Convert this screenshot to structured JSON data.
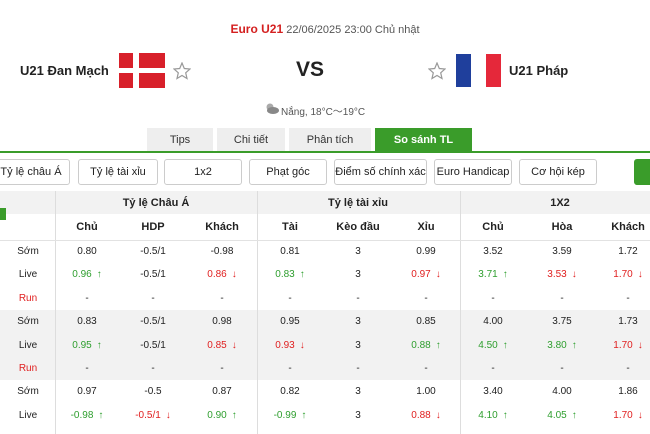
{
  "header": {
    "competition": "Euro U21",
    "datetime": "22/06/2025 23:00 Chủ nhật",
    "home": "U21 Đan Mạch",
    "vs": "VS",
    "away": "U21 Pháp",
    "weather": "Nắng, 18°C～19°C"
  },
  "tabs": [
    {
      "label": "Tips"
    },
    {
      "label": "Chi tiết"
    },
    {
      "label": "Phân tích"
    },
    {
      "label": "So sánh TL",
      "active": true
    }
  ],
  "filters": [
    "Tỷ lệ châu Á",
    "Tỷ lệ tài xỉu",
    "1x2",
    "Phạt góc",
    "Điểm số chính xác",
    "Euro Handicap",
    "Cơ hội kép"
  ],
  "table": {
    "groups": [
      "Tỷ lệ Châu Á",
      "Tỷ lệ tài xỉu",
      "1X2"
    ],
    "columns": [
      "Chủ",
      "HDP",
      "Khách",
      "Tài",
      "Kèo đầu",
      "Xỉu",
      "Chủ",
      "Hòa",
      "Khách"
    ],
    "trends": {
      "up": {
        "arrow": "↑",
        "color": "#2e9e2e"
      },
      "down": {
        "arrow": "↓",
        "color": "#e02020"
      }
    },
    "rows": [
      {
        "label": "Sớm",
        "cells": [
          {
            "v": "0.80"
          },
          {
            "v": "-0.5/1"
          },
          {
            "v": "-0.98"
          },
          {
            "v": "0.81"
          },
          {
            "v": "3"
          },
          {
            "v": "0.99"
          },
          {
            "v": "3.52"
          },
          {
            "v": "3.59"
          },
          {
            "v": "1.72"
          }
        ]
      },
      {
        "label": "Live",
        "cells": [
          {
            "v": "0.96",
            "trend": "up"
          },
          {
            "v": "-0.5/1"
          },
          {
            "v": "0.86",
            "trend": "down"
          },
          {
            "v": "0.83",
            "trend": "up"
          },
          {
            "v": "3"
          },
          {
            "v": "0.97",
            "trend": "down"
          },
          {
            "v": "3.71",
            "trend": "up"
          },
          {
            "v": "3.53",
            "trend": "down"
          },
          {
            "v": "1.70",
            "trend": "down"
          }
        ]
      },
      {
        "label": "Run",
        "label_color": "#e02020",
        "cells": [
          {
            "v": "-"
          },
          {
            "v": "-"
          },
          {
            "v": "-"
          },
          {
            "v": "-"
          },
          {
            "v": "-"
          },
          {
            "v": "-"
          },
          {
            "v": "-"
          },
          {
            "v": "-"
          },
          {
            "v": "-"
          }
        ]
      },
      {
        "label": "Sớm",
        "cells": [
          {
            "v": "0.83"
          },
          {
            "v": "-0.5/1"
          },
          {
            "v": "0.98"
          },
          {
            "v": "0.95"
          },
          {
            "v": "3"
          },
          {
            "v": "0.85"
          },
          {
            "v": "4.00"
          },
          {
            "v": "3.75"
          },
          {
            "v": "1.73"
          }
        ]
      },
      {
        "label": "Live",
        "cells": [
          {
            "v": "0.95",
            "trend": "up"
          },
          {
            "v": "-0.5/1"
          },
          {
            "v": "0.85",
            "trend": "down"
          },
          {
            "v": "0.93",
            "trend": "down"
          },
          {
            "v": "3"
          },
          {
            "v": "0.88",
            "trend": "up"
          },
          {
            "v": "4.50",
            "trend": "up"
          },
          {
            "v": "3.80",
            "trend": "up"
          },
          {
            "v": "1.70",
            "trend": "down"
          }
        ]
      },
      {
        "label": "Run",
        "label_color": "#e02020",
        "cells": [
          {
            "v": "-"
          },
          {
            "v": "-"
          },
          {
            "v": "-"
          },
          {
            "v": "-"
          },
          {
            "v": "-"
          },
          {
            "v": "-"
          },
          {
            "v": "-"
          },
          {
            "v": "-"
          },
          {
            "v": "-"
          }
        ]
      },
      {
        "label": "Sớm",
        "cells": [
          {
            "v": "0.97"
          },
          {
            "v": "-0.5"
          },
          {
            "v": "0.87"
          },
          {
            "v": "0.82"
          },
          {
            "v": "3"
          },
          {
            "v": "1.00"
          },
          {
            "v": "3.40"
          },
          {
            "v": "4.00"
          },
          {
            "v": "1.86"
          }
        ]
      },
      {
        "label": "Live",
        "cells": [
          {
            "v": "-0.98",
            "trend": "up"
          },
          {
            "v": "-0.5/1",
            "trend": "down"
          },
          {
            "v": "0.90",
            "trend": "up"
          },
          {
            "v": "-0.99",
            "trend": "up"
          },
          {
            "v": "3"
          },
          {
            "v": "0.88",
            "trend": "down"
          },
          {
            "v": "4.10",
            "trend": "up"
          },
          {
            "v": "4.05",
            "trend": "up"
          },
          {
            "v": "1.70",
            "trend": "down"
          }
        ]
      }
    ]
  }
}
